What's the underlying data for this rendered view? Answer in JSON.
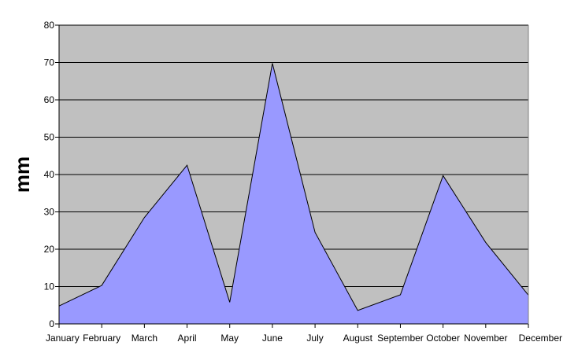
{
  "chart_data": {
    "type": "area",
    "title": "",
    "xlabel": "",
    "ylabel": "mm",
    "categories": [
      "January",
      "February",
      "March",
      "April",
      "May",
      "June",
      "July",
      "August",
      "September",
      "October",
      "November",
      "December"
    ],
    "series": [
      {
        "values": [
          4.8,
          10.3,
          28.5,
          42.5,
          5.8,
          69.8,
          24.5,
          3.6,
          7.8,
          39.7,
          21.8,
          7.7
        ]
      }
    ],
    "ylim": [
      0,
      80
    ],
    "yticks": [
      0,
      10,
      20,
      30,
      40,
      50,
      60,
      70,
      80
    ],
    "grid": true,
    "legend": "none",
    "colors": {
      "plot_background": "#C0C0C0",
      "area_fill": "#9999FF",
      "area_stroke": "#000000",
      "gridline": "#000000",
      "axis": "#000000"
    }
  }
}
